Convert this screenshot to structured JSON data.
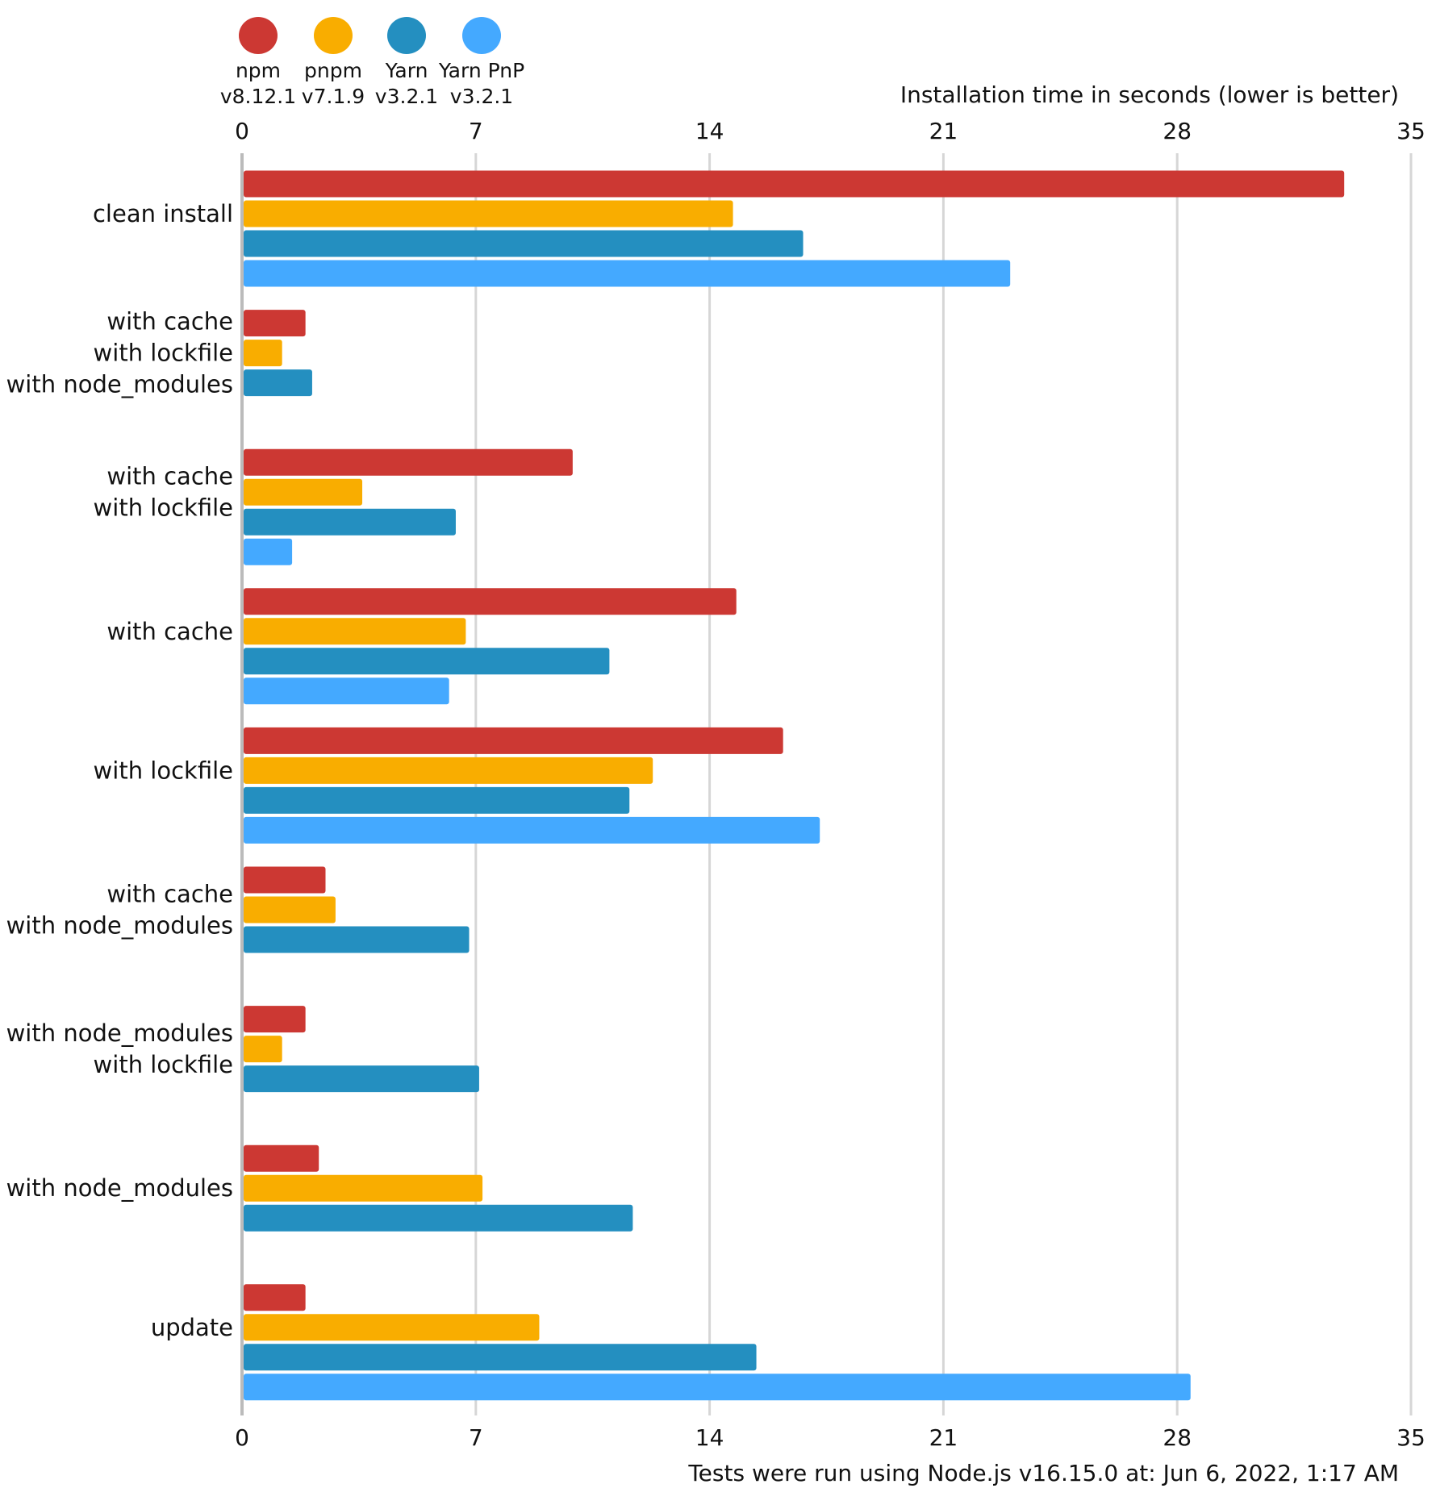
{
  "chart_data": {
    "type": "bar",
    "orientation": "horizontal",
    "title": "Installation time in seconds (lower is better)",
    "footnote": "Tests were run using Node.js v16.15.0 at: Jun 6, 2022, 1:17 AM",
    "xlim": [
      0,
      35
    ],
    "xticks": [
      "0",
      "7",
      "14",
      "21",
      "28",
      "35"
    ],
    "grid": true,
    "legend_position": "top-left",
    "categories": [
      [
        "clean install"
      ],
      [
        "with cache",
        "with lockfile",
        "with node_modules"
      ],
      [
        "with cache",
        "with lockfile"
      ],
      [
        "with cache"
      ],
      [
        "with lockfile"
      ],
      [
        "with cache",
        "with node_modules"
      ],
      [
        "with node_modules",
        "with lockfile"
      ],
      [
        "with node_modules"
      ],
      [
        "update"
      ]
    ],
    "series": [
      {
        "name": "npm",
        "version": "v8.12.1",
        "color": "#cc3833",
        "values": [
          33.0,
          1.9,
          9.9,
          14.8,
          16.2,
          2.5,
          1.9,
          2.3,
          1.9
        ]
      },
      {
        "name": "pnpm",
        "version": "v7.1.9",
        "color": "#f9ad00",
        "values": [
          14.7,
          1.2,
          3.6,
          6.7,
          12.3,
          2.8,
          1.2,
          7.2,
          8.9
        ]
      },
      {
        "name": "Yarn",
        "version": "v3.2.1",
        "color": "#248fc0",
        "values": [
          16.8,
          2.1,
          6.4,
          11.0,
          11.6,
          6.8,
          7.1,
          11.7,
          15.4
        ]
      },
      {
        "name": "Yarn PnP",
        "version": "v3.2.1",
        "color": "#44a9ff",
        "values": [
          23.0,
          null,
          1.5,
          6.2,
          17.3,
          null,
          null,
          null,
          28.4
        ]
      }
    ]
  }
}
